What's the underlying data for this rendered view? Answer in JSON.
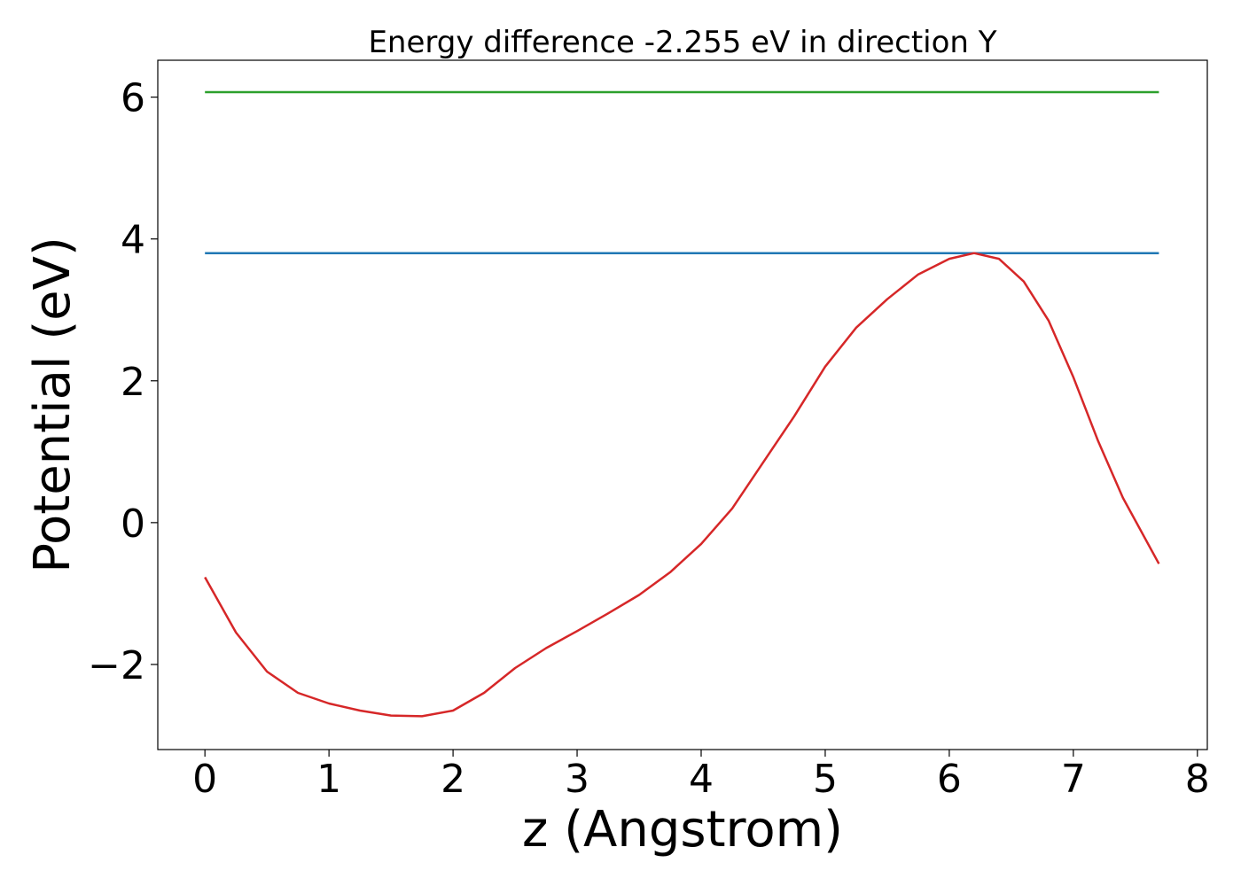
{
  "chart_data": {
    "type": "line",
    "title": "Energy difference -2.255 eV in direction Y",
    "xlabel": "z (Angstrom)",
    "ylabel": "Potential (eV)",
    "xlim": [
      -0.38,
      8.08
    ],
    "ylim": [
      -3.2,
      6.52
    ],
    "xticks": [
      0,
      1,
      2,
      3,
      4,
      5,
      6,
      7,
      8
    ],
    "xtick_labels": [
      "0",
      "1",
      "2",
      "3",
      "4",
      "5",
      "6",
      "7",
      "8"
    ],
    "yticks": [
      -2,
      0,
      2,
      4,
      6
    ],
    "ytick_labels": [
      "−2",
      "0",
      "2",
      "4",
      "6"
    ],
    "grid": false,
    "legend": "none",
    "series": [
      {
        "color": "#2ca02c",
        "x": [
          0,
          7.69
        ],
        "y": [
          6.07,
          6.07
        ]
      },
      {
        "color": "#1f77b4",
        "x": [
          0,
          7.69
        ],
        "y": [
          3.8,
          3.8
        ]
      },
      {
        "color": "#d62728",
        "x": [
          0,
          0.25,
          0.5,
          0.75,
          1.0,
          1.25,
          1.5,
          1.75,
          2.0,
          2.25,
          2.5,
          2.75,
          3.0,
          3.25,
          3.5,
          3.75,
          4.0,
          4.25,
          4.5,
          4.75,
          5.0,
          5.25,
          5.5,
          5.75,
          6.0,
          6.2,
          6.4,
          6.6,
          6.8,
          7.0,
          7.2,
          7.4,
          7.69
        ],
        "y": [
          -0.77,
          -1.55,
          -2.1,
          -2.4,
          -2.55,
          -2.65,
          -2.72,
          -2.73,
          -2.65,
          -2.4,
          -2.05,
          -1.77,
          -1.53,
          -1.28,
          -1.02,
          -0.7,
          -0.3,
          0.2,
          0.85,
          1.5,
          2.2,
          2.75,
          3.15,
          3.5,
          3.72,
          3.8,
          3.72,
          3.4,
          2.85,
          2.05,
          1.15,
          0.35,
          -0.58
        ]
      }
    ]
  }
}
